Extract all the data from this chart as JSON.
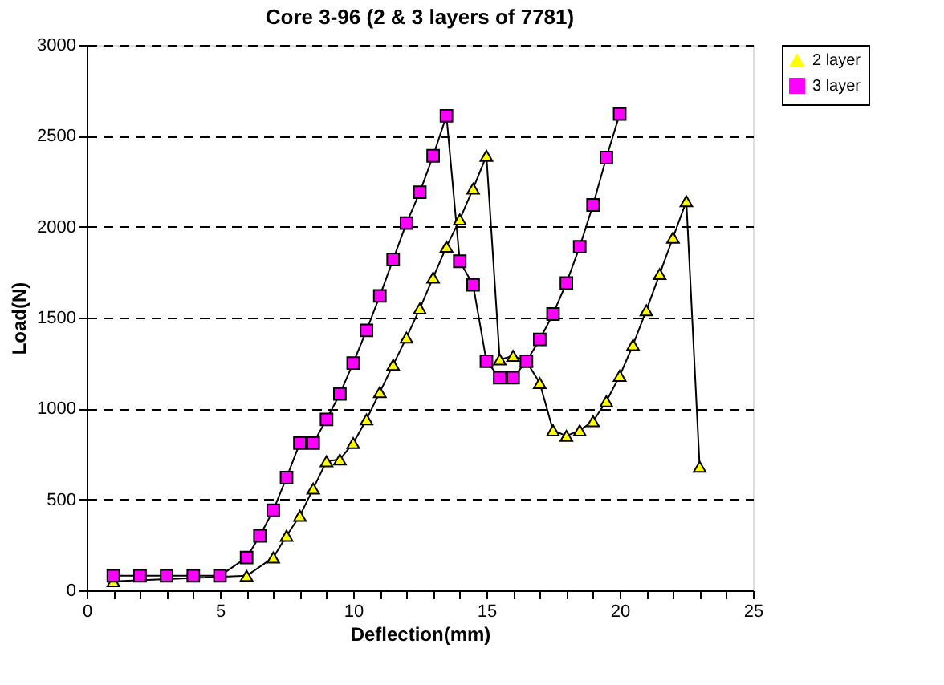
{
  "chart_data": {
    "type": "line",
    "title": "Core 3-96 (2 & 3 layers of 7781)",
    "xlabel": "Deflection(mm)",
    "ylabel": "Load(N)",
    "xlim": [
      0,
      25
    ],
    "ylim": [
      0,
      3000
    ],
    "xticks": [
      0,
      {
        "value": 1,
        "label": null
      },
      {
        "value": 2,
        "label": null
      },
      {
        "value": 3,
        "label": null
      },
      {
        "value": 4,
        "label": null
      },
      5,
      {
        "value": 6,
        "label": null
      },
      {
        "value": 7,
        "label": null
      },
      {
        "value": 8,
        "label": null
      },
      {
        "value": 9,
        "label": null
      },
      10,
      {
        "value": 11,
        "label": null
      },
      {
        "value": 12,
        "label": null
      },
      {
        "value": 13,
        "label": null
      },
      {
        "value": 14,
        "label": null
      },
      15,
      {
        "value": 16,
        "label": null
      },
      {
        "value": 17,
        "label": null
      },
      {
        "value": 18,
        "label": null
      },
      {
        "value": 19,
        "label": null
      },
      20,
      {
        "value": 21,
        "label": null
      },
      {
        "value": 22,
        "label": null
      },
      {
        "value": 23,
        "label": null
      },
      {
        "value": 24,
        "label": null
      },
      25
    ],
    "yticks": [
      0,
      500,
      1000,
      1500,
      2000,
      2500,
      3000
    ],
    "grid": "y",
    "legend": "right",
    "line_style": "solid",
    "series": [
      {
        "name": "2 layer",
        "color": "#ffff00",
        "marker": "triangle",
        "x": [
          1,
          2,
          3,
          4,
          5,
          6,
          7,
          7.5,
          8,
          8.5,
          9,
          9.5,
          10,
          10.5,
          11,
          11.5,
          12,
          12.5,
          13,
          13.5,
          14,
          14.5,
          15,
          15.5,
          16,
          16.5,
          17,
          17.5,
          18,
          18.5,
          19,
          19.5,
          20,
          20.5,
          21,
          21.5,
          22,
          22.5,
          23
        ],
        "values": [
          50,
          null,
          null,
          null,
          null,
          80,
          180,
          300,
          410,
          560,
          710,
          720,
          810,
          940,
          1090,
          1240,
          1390,
          1550,
          1720,
          1890,
          2040,
          2210,
          2390,
          1270,
          1290,
          1260,
          1140,
          880,
          850,
          880,
          930,
          1040,
          1180,
          1350,
          1540,
          1740,
          1940,
          2140,
          680
        ]
      },
      {
        "name": "3 layer",
        "color": "#ff00ff",
        "marker": "square",
        "x": [
          1,
          2,
          3,
          4,
          5,
          6,
          6.5,
          7,
          7.5,
          8,
          8.5,
          9,
          9.5,
          10,
          10.5,
          11,
          11.5,
          12,
          12.5,
          13,
          13.5,
          14,
          14.5,
          15,
          15.5,
          16,
          16.5,
          17,
          17.5,
          18,
          18.5,
          19,
          19.5,
          20
        ],
        "values": [
          80,
          80,
          80,
          80,
          80,
          180,
          300,
          440,
          620,
          810,
          810,
          940,
          1080,
          1250,
          1430,
          1620,
          1820,
          2020,
          2190,
          2390,
          2610,
          1810,
          1680,
          1260,
          1170,
          1170,
          1260,
          1380,
          1520,
          1690,
          1890,
          2120,
          2380,
          2620
        ]
      }
    ]
  }
}
